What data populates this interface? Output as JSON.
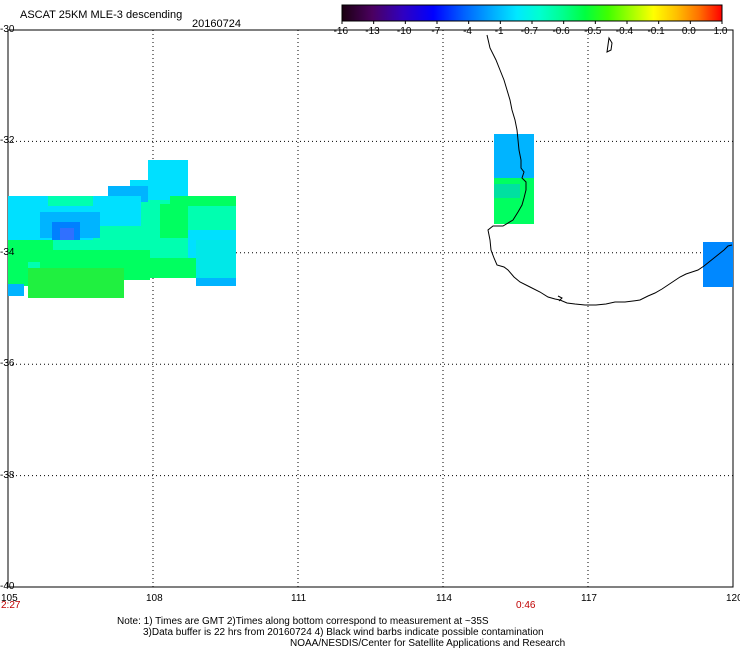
{
  "header": {
    "title": "ASCAT 25KM MLE-3 descending",
    "date": "20160724"
  },
  "colorbar": {
    "labels": [
      "-16",
      "-13",
      "-10",
      "-7",
      "-4",
      "-1",
      "-0.7",
      "-0.6",
      "-0.5",
      "-0.4",
      "-0.1",
      "0.0",
      "1.0"
    ],
    "colors": [
      "#2a0018",
      "#4b0082",
      "#0000ff",
      "#0070ff",
      "#00c8ff",
      "#00ffe0",
      "#00ffa0",
      "#00ff40",
      "#40ff00",
      "#c0ff00",
      "#ffff00",
      "#ff9000",
      "#ff0000"
    ]
  },
  "map": {
    "lat_labels": [
      "-30",
      "-32",
      "-34",
      "-36",
      "-38",
      "-40"
    ],
    "lon_labels": [
      "105",
      "108",
      "111",
      "114",
      "117",
      "120"
    ],
    "lon_range": [
      105,
      120
    ],
    "lat_range": [
      -40,
      -30
    ],
    "time_labels": {
      "left": "2:27",
      "right": "0:46"
    },
    "swath_colors": {
      "cyan": "#00e0ff",
      "blue_cyan": "#00b4ff",
      "deep_blue": "#0080ff",
      "green_cyan": "#00ffb0",
      "green": "#00ff60",
      "bright_green": "#20f040"
    }
  },
  "footer": {
    "line1": "Note: 1) Times are GMT 2)Times along bottom correspond to measurement at ~35S",
    "line2": "3)Data buffer is 22 hrs from 20160724 4) Black wind barbs indicate possible contamination",
    "line3": "NOAA/NESDIS/Center for Satellite Applications and Research"
  }
}
